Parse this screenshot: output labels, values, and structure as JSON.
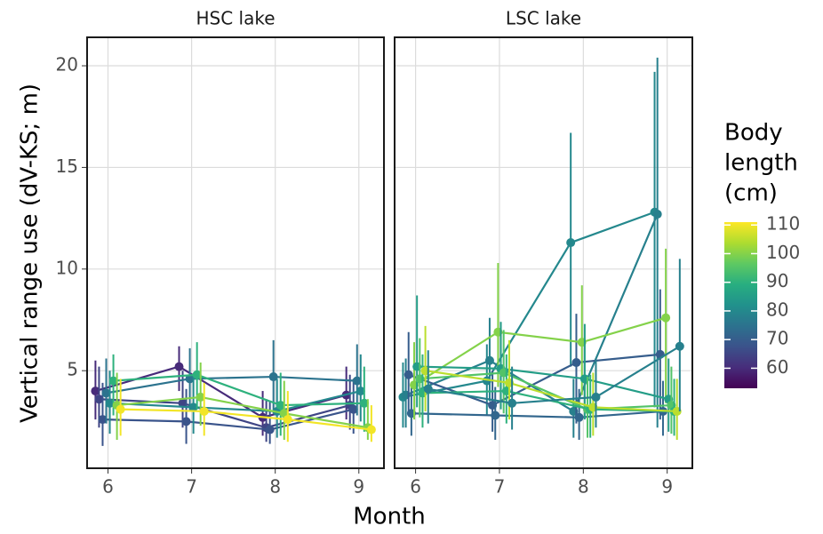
{
  "chart_data": {
    "type": "line",
    "x_label": "Month",
    "y_label": "Vertical range use (dV-KS; m)",
    "x": [
      6,
      7,
      8,
      9
    ],
    "xlim": [
      5.75,
      9.3
    ],
    "xticks": [
      6,
      7,
      8,
      9
    ],
    "ylim": [
      0.2,
      21.4
    ],
    "yticks": [
      5,
      10,
      15,
      20
    ],
    "grid": true,
    "colorbar": {
      "title": [
        "Body",
        "length",
        "(cm)"
      ],
      "lim": [
        53,
        111
      ],
      "ticks": [
        60,
        70,
        80,
        90,
        100,
        110
      ],
      "palette": "viridis"
    },
    "facets": [
      {
        "title": "HSC lake",
        "series": [
          {
            "body_length": 60,
            "values": [
              4.0,
              5.2,
              2.7,
              3.8
            ],
            "lower": [
              2.6,
              4.0,
              1.8,
              2.6
            ],
            "upper": [
              5.5,
              6.2,
              4.0,
              5.2
            ]
          },
          {
            "body_length": 65,
            "values": [
              3.6,
              3.4,
              2.2,
              3.3
            ],
            "lower": [
              2.2,
              2.2,
              1.5,
              2.1
            ],
            "upper": [
              5.2,
              5.0,
              3.6,
              4.8
            ]
          },
          {
            "body_length": 68,
            "values": [
              2.6,
              2.5,
              2.1,
              3.1
            ],
            "lower": [
              1.3,
              1.4,
              1.4,
              1.9
            ],
            "upper": [
              4.4,
              4.1,
              3.5,
              4.6
            ]
          },
          {
            "body_length": 75,
            "values": [
              3.9,
              4.6,
              4.7,
              4.5
            ],
            "lower": [
              2.4,
              3.0,
              2.9,
              2.8
            ],
            "upper": [
              5.6,
              6.1,
              6.5,
              6.3
            ]
          },
          {
            "body_length": 80,
            "values": [
              3.4,
              3.2,
              3.0,
              4.0
            ],
            "lower": [
              1.9,
              1.9,
              1.7,
              2.5
            ],
            "upper": [
              5.0,
              4.8,
              4.6,
              5.8
            ]
          },
          {
            "body_length": 90,
            "values": [
              4.5,
              4.8,
              3.3,
              3.4
            ],
            "lower": [
              2.8,
              3.1,
              1.8,
              2.0
            ],
            "upper": [
              5.8,
              6.4,
              4.9,
              5.2
            ]
          },
          {
            "body_length": 100,
            "values": [
              3.3,
              3.7,
              2.9,
              2.2
            ],
            "lower": [
              1.6,
              2.3,
              1.6,
              1.6
            ],
            "upper": [
              4.9,
              5.4,
              4.5,
              3.6
            ]
          },
          {
            "body_length": 110,
            "values": [
              3.1,
              3.0,
              2.6,
              2.1
            ],
            "lower": [
              1.8,
              1.8,
              1.5,
              1.5
            ],
            "upper": [
              4.6,
              4.4,
              4.0,
              3.3
            ]
          }
        ]
      },
      {
        "title": "LSC lake",
        "series": [
          {
            "body_length": 80,
            "values": [
              3.7,
              4.5,
              11.3,
              12.8
            ],
            "lower": [
              2.2,
              2.8,
              5.2,
              3.2
            ],
            "upper": [
              5.4,
              6.3,
              16.7,
              19.7
            ]
          },
          {
            "body_length": 78,
            "values": [
              3.8,
              5.5,
              3.0,
              12.7
            ],
            "lower": [
              2.2,
              3.5,
              1.7,
              2.2
            ],
            "upper": [
              5.6,
              7.6,
              4.6,
              20.4
            ]
          },
          {
            "body_length": 70,
            "values": [
              4.8,
              3.3,
              5.4,
              5.8
            ],
            "lower": [
              2.9,
              2.0,
              2.4,
              2.6
            ],
            "upper": [
              6.9,
              5.0,
              7.8,
              9.0
            ]
          },
          {
            "body_length": 72,
            "values": [
              2.9,
              2.8,
              2.7,
              3.0
            ],
            "lower": [
              1.8,
              1.6,
              1.6,
              1.8
            ],
            "upper": [
              4.4,
              4.2,
              4.1,
              4.5
            ]
          },
          {
            "body_length": 100,
            "values": [
              4.3,
              6.9,
              6.4,
              7.6
            ],
            "lower": [
              2.6,
              4.2,
              3.8,
              3.4
            ],
            "upper": [
              6.4,
              10.3,
              9.2,
              11.0
            ]
          },
          {
            "body_length": 85,
            "values": [
              5.2,
              5.1,
              4.6,
              3.6
            ],
            "lower": [
              3.2,
              3.1,
              2.6,
              2.0
            ],
            "upper": [
              8.7,
              7.4,
              7.3,
              5.6
            ]
          },
          {
            "body_length": 95,
            "values": [
              4.6,
              4.9,
              3.1,
              3.3
            ],
            "lower": [
              2.7,
              2.9,
              1.7,
              1.9
            ],
            "upper": [
              6.6,
              7.0,
              4.7,
              5.2
            ]
          },
          {
            "body_length": 90,
            "values": [
              3.9,
              4.0,
              3.1,
              3.0
            ],
            "lower": [
              2.2,
              2.4,
              1.7,
              1.8
            ],
            "upper": [
              5.8,
              5.8,
              4.8,
              4.6
            ]
          },
          {
            "body_length": 105,
            "values": [
              5.0,
              4.4,
              3.2,
              3.0
            ],
            "lower": [
              3.0,
              2.6,
              1.8,
              1.6
            ],
            "upper": [
              7.2,
              6.5,
              4.9,
              4.6
            ]
          },
          {
            "body_length": 78,
            "values": [
              4.1,
              3.4,
              3.7,
              6.2
            ],
            "lower": [
              2.4,
              2.1,
              2.2,
              3.0
            ],
            "upper": [
              6.0,
              5.2,
              5.6,
              10.5
            ]
          }
        ]
      }
    ]
  }
}
